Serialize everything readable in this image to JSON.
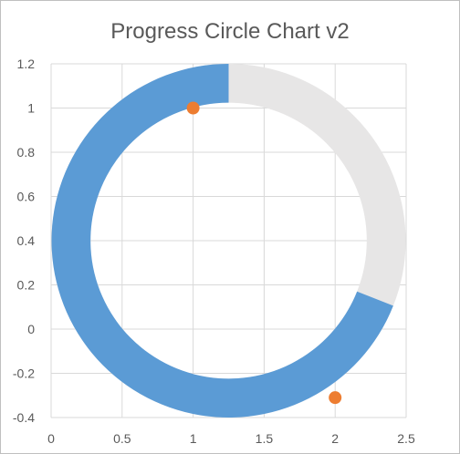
{
  "chart_data": {
    "type": "donut-progress",
    "title": "Progress Circle Chart v2",
    "xlabel": "",
    "ylabel": "",
    "xlim": [
      0,
      2.5
    ],
    "ylim": [
      -0.4,
      1.2
    ],
    "x_ticks": [
      0,
      0.5,
      1,
      1.5,
      2,
      2.5
    ],
    "x_tick_labels": [
      "0",
      "0.5",
      "1",
      "1.5",
      "2",
      "2.5"
    ],
    "y_ticks": [
      1.2,
      1,
      0.8,
      0.6,
      0.4,
      0.2,
      0,
      -0.2,
      -0.4
    ],
    "y_tick_labels": [
      "1.2",
      "1",
      "0.8",
      "0.6",
      "0.4",
      "0.2",
      "0",
      "-0.2",
      "-0.4"
    ],
    "grid": true,
    "donut": {
      "progress_fraction": 0.69,
      "progress_color": "#5b9bd5",
      "remaining_color": "#e7e6e6"
    },
    "scatter_points": [
      {
        "x": 1,
        "y": 1
      },
      {
        "x": 2,
        "y": -0.31
      }
    ],
    "scatter_color": "#ed7d31"
  }
}
